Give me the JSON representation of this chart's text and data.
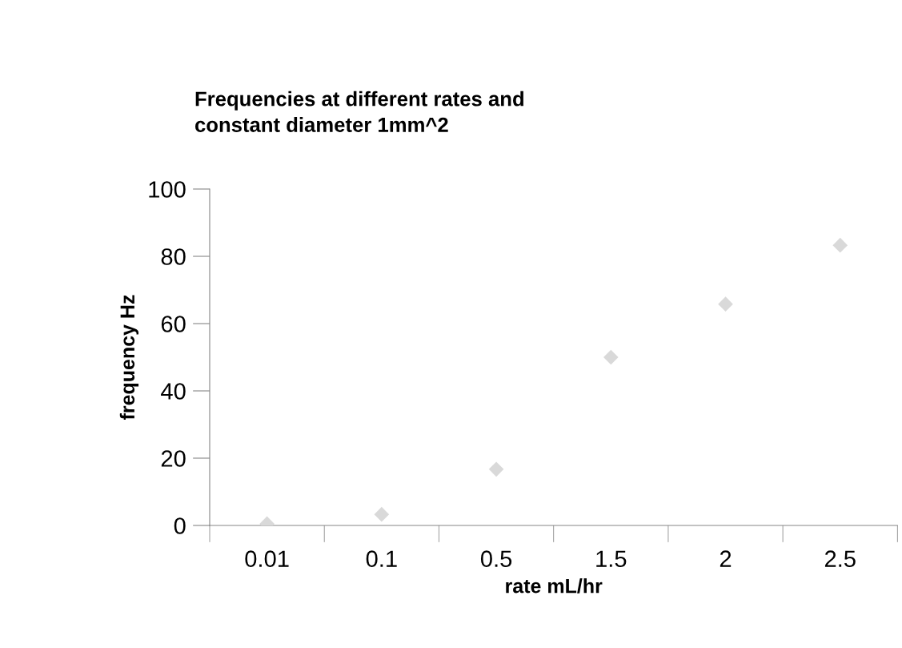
{
  "chart_data": {
    "type": "scatter",
    "title": "Frequencies at different rates and\nconstant diameter 1mm^2",
    "xlabel": "rate mL/hr",
    "ylabel": "frequency Hz",
    "categories": [
      "0.01",
      "0.1",
      "0.5",
      "1.5",
      "2",
      "2.5"
    ],
    "series": [
      {
        "color": "#d9d9d9",
        "values": [
          0.5,
          3.3,
          16.7,
          50,
          65.8,
          83.3
        ]
      }
    ],
    "ylim": [
      0,
      100
    ],
    "yticks": [
      0,
      20,
      40,
      60,
      80,
      100
    ],
    "grid": false,
    "legend": false,
    "marker": "diamond"
  }
}
